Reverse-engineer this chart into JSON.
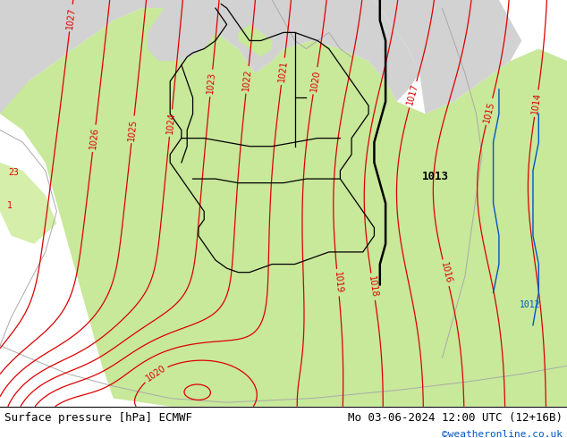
{
  "title_left": "Surface pressure [hPa] ECMWF",
  "title_right": "Mo 03-06-2024 12:00 UTC (12+16B)",
  "credit": "©weatheronline.co.uk",
  "sea_color": "#d2d2d2",
  "land_color": "#c8e89a",
  "land_color2": "#d5eeaa",
  "contour_red": "#dd0000",
  "contour_black": "#000000",
  "contour_blue": "#0055cc",
  "contour_gray": "#aaaaaa",
  "footer_bg": "#ffffff",
  "text_color": "#000000",
  "credit_color": "#0055cc",
  "figsize": [
    6.34,
    4.9
  ],
  "dpi": 100
}
